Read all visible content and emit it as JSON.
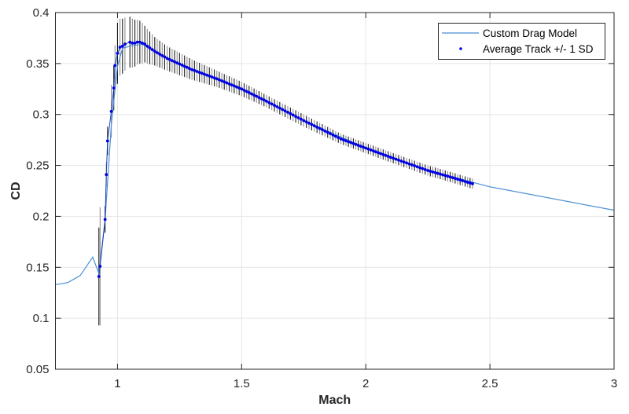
{
  "chart_data": {
    "type": "line",
    "title": "",
    "xlabel": "Mach",
    "ylabel": "CD",
    "xlim": [
      0.75,
      3
    ],
    "ylim": [
      0.05,
      0.4
    ],
    "xticks": [
      1,
      1.5,
      2,
      2.5,
      3
    ],
    "xtick_labels": [
      "1",
      "1.5",
      "2",
      "2.5",
      "3"
    ],
    "yticks": [
      0.05,
      0.1,
      0.15,
      0.2,
      0.25,
      0.3,
      0.35,
      0.4
    ],
    "ytick_labels": [
      "0.05",
      "0.1",
      "0.15",
      "0.2",
      "0.25",
      "0.3",
      "0.35",
      "0.4"
    ],
    "grid": true,
    "legend_position": "upper right",
    "series": [
      {
        "name": "Custom Drag Model",
        "style": "line",
        "color": "#4a8fd4",
        "x": [
          0.75,
          0.8,
          0.85,
          0.9,
          0.925,
          0.95,
          0.975,
          1.0,
          1.02,
          1.05,
          1.1,
          1.2,
          1.3,
          1.5,
          1.75,
          2.0,
          2.25,
          2.5,
          3.0
        ],
        "y": [
          0.133,
          0.135,
          0.142,
          0.16,
          0.144,
          0.197,
          0.29,
          0.347,
          0.365,
          0.367,
          0.369,
          0.355,
          0.344,
          0.325,
          0.294,
          0.267,
          0.245,
          0.229,
          0.206
        ]
      },
      {
        "name": "Average Track +/- 1 SD",
        "style": "markers+errorbars",
        "color": "#0000e0",
        "x": [
          0.925,
          0.93,
          0.95,
          0.955,
          0.96,
          0.975,
          0.985,
          0.99,
          1.0,
          1.01,
          1.02,
          1.03,
          1.05,
          1.06,
          1.07,
          1.08,
          1.09,
          1.1,
          1.11,
          1.12,
          1.15,
          1.2,
          1.3,
          1.4,
          1.5,
          1.6,
          1.75,
          1.9,
          2.0,
          2.1,
          2.25,
          2.35,
          2.43
        ],
        "y": [
          0.141,
          0.151,
          0.197,
          0.241,
          0.274,
          0.303,
          0.326,
          0.348,
          0.36,
          0.366,
          0.367,
          0.369,
          0.371,
          0.37,
          0.37,
          0.371,
          0.371,
          0.37,
          0.369,
          0.367,
          0.362,
          0.355,
          0.344,
          0.335,
          0.325,
          0.313,
          0.294,
          0.276,
          0.267,
          0.258,
          0.245,
          0.238,
          0.232
        ],
        "sd": [
          0.048,
          0.058,
          0.013,
          0.012,
          0.014,
          0.026,
          0.022,
          0.02,
          0.03,
          0.028,
          0.027,
          0.026,
          0.025,
          0.024,
          0.023,
          0.022,
          0.021,
          0.02,
          0.018,
          0.017,
          0.014,
          0.012,
          0.01,
          0.008,
          0.007,
          0.006,
          0.006,
          0.005,
          0.005,
          0.005,
          0.005,
          0.005,
          0.005
        ]
      }
    ]
  },
  "legend": {
    "items": [
      {
        "label": "Custom Drag Model"
      },
      {
        "label": "Average Track +/- 1 SD"
      }
    ]
  },
  "axes": {
    "xlabel": "Mach",
    "ylabel": "CD"
  },
  "colors": {
    "model_line": "#4a8fd4",
    "track_marker": "#0000e0",
    "error_bar_dark": "#1a1a1a",
    "error_bar_light": "#909090",
    "grid": "#e6e6e6",
    "axis": "#262626"
  }
}
